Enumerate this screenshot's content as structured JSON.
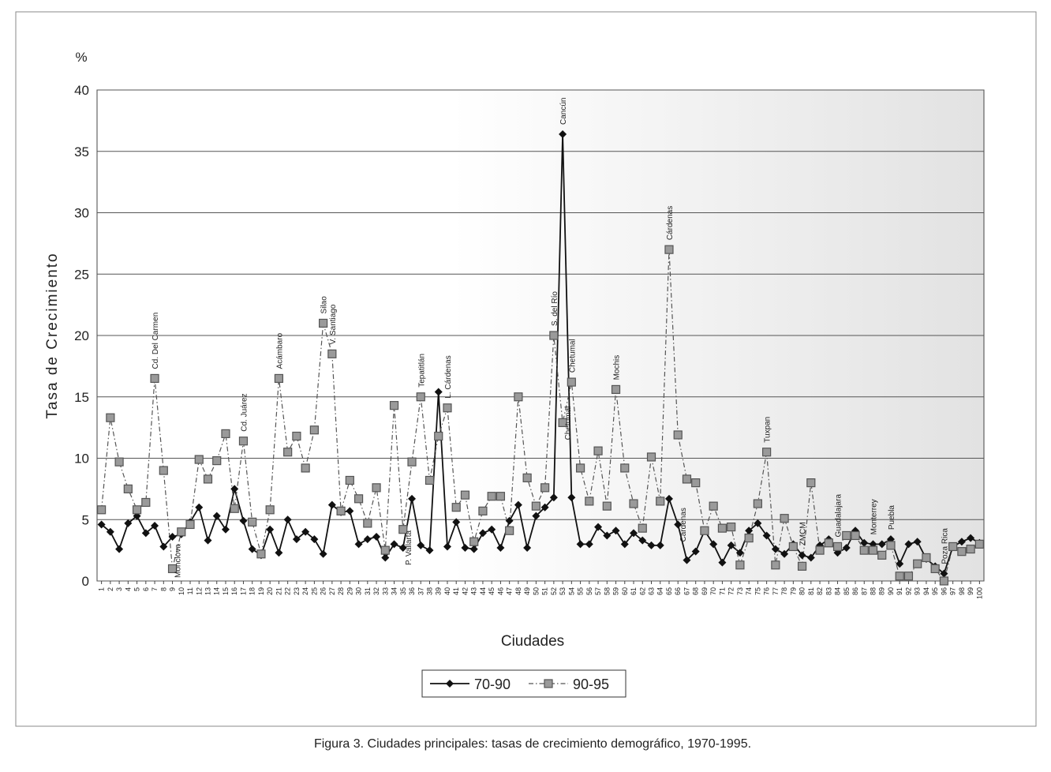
{
  "chart_data": {
    "type": "line",
    "y_unit": "%",
    "ylabel": "Tasa de Crecimiento",
    "xlabel": "Ciudades",
    "caption": "Figura 3. Ciudades principales:  tasas de crecimiento demográfico, 1970-1995.",
    "ylim": [
      0,
      40
    ],
    "yticks": [
      0,
      5,
      10,
      15,
      20,
      25,
      30,
      35,
      40
    ],
    "grid": true,
    "legend": "bottom",
    "categories": [
      "1",
      "2",
      "3",
      "4",
      "5",
      "6",
      "7",
      "8",
      "9",
      "10",
      "11",
      "12",
      "13",
      "14",
      "15",
      "16",
      "17",
      "18",
      "19",
      "20",
      "21",
      "22",
      "23",
      "24",
      "25",
      "26",
      "27",
      "28",
      "29",
      "30",
      "31",
      "32",
      "33",
      "34",
      "35",
      "36",
      "37",
      "38",
      "39",
      "40",
      "41",
      "42",
      "43",
      "44",
      "45",
      "46",
      "47",
      "48",
      "49",
      "50",
      "51",
      "52",
      "53",
      "54",
      "55",
      "56",
      "57",
      "58",
      "59",
      "60",
      "61",
      "62",
      "63",
      "64",
      "65",
      "66",
      "67",
      "68",
      "69",
      "70",
      "71",
      "72",
      "73",
      "74",
      "75",
      "76",
      "77",
      "78",
      "79",
      "80",
      "81",
      "82",
      "83",
      "84",
      "85",
      "86",
      "87",
      "88",
      "89",
      "90",
      "91",
      "92",
      "93",
      "94",
      "95",
      "96",
      "97",
      "98",
      "99",
      "100"
    ],
    "series": [
      {
        "name": "70-90",
        "color": "#111111",
        "line_style": "solid",
        "marker": "diamond",
        "values": [
          4.6,
          4.0,
          2.6,
          4.7,
          5.3,
          3.9,
          4.5,
          2.8,
          3.6,
          3.8,
          4.8,
          6.0,
          3.3,
          5.3,
          4.2,
          7.5,
          4.9,
          2.6,
          2.1,
          4.2,
          2.3,
          5.0,
          3.4,
          4.0,
          3.4,
          2.2,
          6.2,
          5.6,
          5.7,
          3.0,
          3.4,
          3.6,
          1.9,
          3.0,
          2.7,
          6.7,
          2.9,
          2.5,
          15.4,
          2.8,
          4.8,
          2.7,
          2.6,
          3.9,
          4.2,
          2.7,
          4.9,
          6.2,
          2.7,
          5.3,
          6.0,
          6.8,
          36.4,
          6.8,
          3.0,
          3.0,
          4.4,
          3.7,
          4.1,
          3.0,
          3.9,
          3.3,
          2.9,
          2.9,
          6.7,
          4.6,
          1.7,
          2.4,
          4.1,
          3.0,
          1.5,
          2.9,
          2.3,
          4.1,
          4.7,
          3.7,
          2.6,
          2.2,
          3.0,
          2.1,
          1.9,
          2.9,
          3.4,
          2.3,
          2.7,
          4.1,
          3.1,
          3.0,
          3.0,
          3.4,
          1.4,
          3.0,
          3.2,
          1.8,
          1.2,
          0.6,
          2.8,
          3.2,
          3.5,
          3.1
        ]
      },
      {
        "name": "90-95",
        "color": "#555555",
        "line_style": "dashdot",
        "marker": "square",
        "values": [
          5.8,
          13.3,
          9.7,
          7.5,
          5.8,
          6.4,
          16.5,
          9.0,
          1.0,
          4.0,
          4.6,
          9.9,
          8.3,
          9.8,
          12.0,
          5.9,
          11.4,
          4.8,
          2.2,
          5.8,
          16.5,
          10.5,
          11.8,
          9.2,
          12.3,
          21.0,
          18.5,
          5.7,
          8.2,
          6.7,
          4.7,
          7.6,
          2.5,
          14.3,
          4.2,
          9.7,
          15.0,
          8.2,
          11.8,
          14.1,
          6.0,
          7.0,
          3.2,
          5.7,
          6.9,
          6.9,
          4.1,
          15.0,
          8.4,
          6.1,
          7.6,
          20.0,
          12.9,
          16.2,
          9.2,
          6.5,
          10.6,
          6.1,
          15.6,
          9.2,
          6.3,
          4.3,
          10.1,
          6.5,
          27.0,
          11.9,
          8.3,
          8.0,
          4.1,
          6.1,
          4.3,
          4.4,
          1.3,
          3.5,
          6.3,
          10.5,
          1.3,
          5.1,
          2.8,
          1.2,
          8.0,
          2.5,
          3.1,
          2.8,
          3.7,
          3.7,
          2.5,
          2.5,
          2.1,
          2.9,
          0.4,
          0.4,
          1.4,
          1.9,
          1.0,
          0.0,
          2.8,
          2.4,
          2.6,
          3.0
        ]
      }
    ],
    "annotations": [
      {
        "text": "Cd. Del Carmen",
        "category": "7",
        "position": "above"
      },
      {
        "text": "Monclova",
        "category": "9",
        "position": "below"
      },
      {
        "text": "Cd. Juárez",
        "category": "17",
        "position": "above"
      },
      {
        "text": "Acámbaro",
        "category": "21",
        "position": "above"
      },
      {
        "text": "Silao",
        "category": "26",
        "position": "above"
      },
      {
        "text": "V. Santiago",
        "category": "27",
        "position": "above"
      },
      {
        "text": "P. Vallarta",
        "category": "35",
        "position": "below"
      },
      {
        "text": "Tepatitlán",
        "category": "37",
        "position": "above"
      },
      {
        "text": "L. Cárdenas",
        "category": "40",
        "position": "above"
      },
      {
        "text": "S. del Río",
        "category": "52",
        "position": "above"
      },
      {
        "text": "Chetumal",
        "category": "53",
        "position": "below"
      },
      {
        "text": "Cancún",
        "category": "53",
        "position": "above"
      },
      {
        "text": "Chetumal",
        "category": "54",
        "position": "above"
      },
      {
        "text": "Mochis",
        "category": "59",
        "position": "above"
      },
      {
        "text": "Cárdenas",
        "category": "65",
        "position": "above"
      },
      {
        "text": "Cárdenas",
        "category": "66",
        "position": "below"
      },
      {
        "text": "Tuxpan",
        "category": "76",
        "position": "above"
      },
      {
        "text": "ZMCM",
        "category": "80",
        "position": "above"
      },
      {
        "text": "Guadalajara",
        "category": "84",
        "position": "above"
      },
      {
        "text": "Monterrey",
        "category": "88",
        "position": "above"
      },
      {
        "text": "Puebla",
        "category": "90",
        "position": "above"
      },
      {
        "text": "Poza Rica",
        "category": "96",
        "position": "above"
      }
    ]
  }
}
